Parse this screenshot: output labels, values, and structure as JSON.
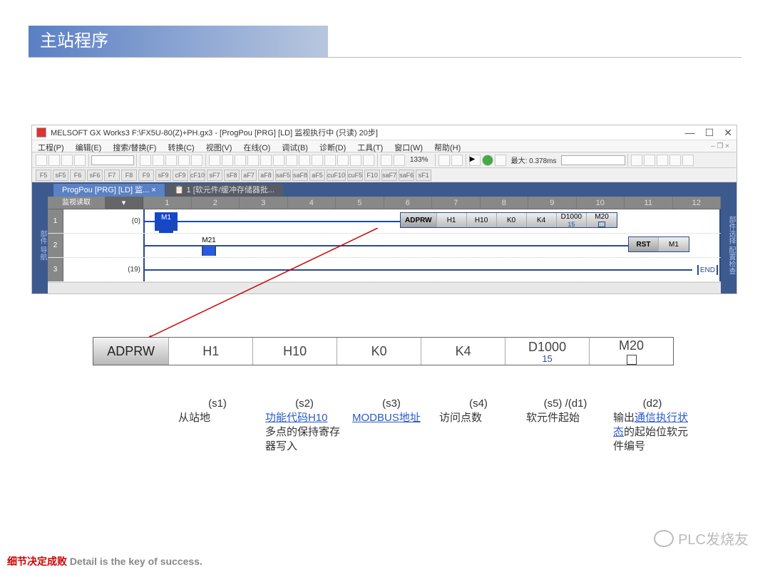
{
  "slide_title": "主站程序",
  "window": {
    "title": "MELSOFT GX Works3 F:\\FX5U-80(Z)+PH.gx3 - [ProgPou [PRG] [LD] 监视执行中 (只读) 20步]",
    "menus": [
      "工程(P)",
      "编辑(E)",
      "搜索/替换(F)",
      "转换(C)",
      "视图(V)",
      "在线(O)",
      "调试(B)",
      "诊断(D)",
      "工具(T)",
      "窗口(W)",
      "帮助(H)"
    ],
    "zoom": "133%",
    "max_time": "最大: 0.378ms",
    "toolbar2_labels": [
      "F5",
      "sF5",
      "F6",
      "sF6",
      "F7",
      "F8",
      "F9",
      "sF9",
      "cF9",
      "cF10",
      "sF7",
      "sF8",
      "aF7",
      "aF8",
      "saF5",
      "saF8",
      "aF5",
      "cuF10",
      "cuF5",
      "F10",
      "saF7",
      "saF6",
      "sF1"
    ],
    "tabs": {
      "active": "ProgPou [PRG] [LD] 监...",
      "inactive": "1 [软元件/缓冲存储器批..."
    },
    "left_panel_label": "监视读取",
    "columns": [
      "1",
      "2",
      "3",
      "4",
      "5",
      "6",
      "7",
      "8",
      "9",
      "10",
      "11",
      "12"
    ],
    "rungs": [
      {
        "num": "1",
        "step": "(0)",
        "contact": "M1",
        "contact_on": true,
        "instr": {
          "head": "ADPRW",
          "args": [
            "H1",
            "H10",
            "K0",
            "K4"
          ],
          "d1": "D1000",
          "d1_sub": "15",
          "d2": "M20"
        }
      },
      {
        "num": "2",
        "step": "",
        "contact": "M21",
        "contact_on": false,
        "instr": {
          "head": "RST",
          "d2": "M1"
        }
      },
      {
        "num": "3",
        "step": "(19)",
        "end": "END"
      }
    ]
  },
  "detail": {
    "head": "ADPRW",
    "cells": [
      {
        "t": "H1"
      },
      {
        "t": "H10"
      },
      {
        "t": "K0"
      },
      {
        "t": "K4"
      },
      {
        "t": "D1000",
        "sub": "15"
      },
      {
        "t": "M20",
        "box": true
      }
    ]
  },
  "params": [
    {
      "id": "(s1)",
      "desc": "从站地"
    },
    {
      "id": "(s2)",
      "desc": "<span class='link'>功能代码H10</span><br>多点的保持寄存器写入"
    },
    {
      "id": "(s3)",
      "desc": "<span class='link'>MODBUS地址</span>"
    },
    {
      "id": "(s4)",
      "desc": "访问点数"
    },
    {
      "id": "(s5) /(d1)",
      "desc": "软元件起始"
    },
    {
      "id": "(d2)",
      "desc": "输出<span class='link'>通信执行状态</span>的起始位软元件编号"
    }
  ],
  "footer": {
    "zh": "细节决定成败",
    "en": "Detail is the key of success."
  },
  "watermark": "PLC发烧友",
  "colors": {
    "accent": "#5a7fc4",
    "rail": "#2a4a8a",
    "on": "#1548c8"
  }
}
